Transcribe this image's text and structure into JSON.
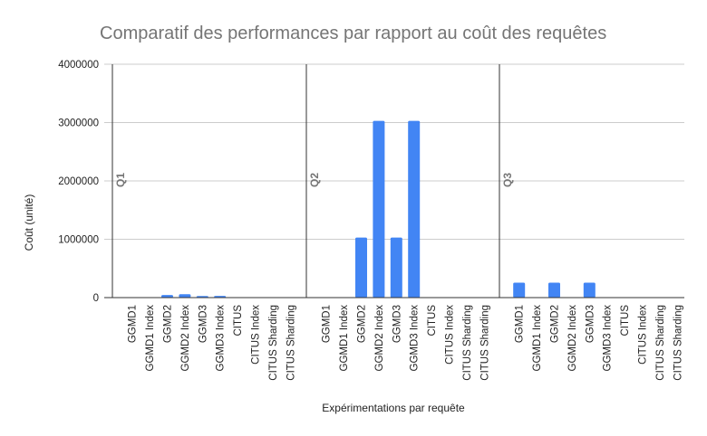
{
  "chart_data": {
    "type": "bar",
    "title": "Comparatif des performances par rapport au coût des requêtes",
    "xlabel": "Expérimentations par requête",
    "ylabel": "Coût (unité)",
    "ylim": [
      0,
      4000000
    ],
    "yticks": [
      "0",
      "1000000",
      "2000000",
      "3000000",
      "4000000"
    ],
    "grid": true,
    "legend": "none",
    "bar_color": "#4285f4",
    "groups": [
      {
        "label": "Q1",
        "categories": [
          "GGMD1",
          "GGMD1 Index",
          "GGMD2",
          "GGMD2 Index",
          "GGMD3",
          "GGMD3 Index",
          "CITUS",
          "CITUS Index",
          "CITUS Sharding",
          "CITUS Sharding"
        ],
        "values": [
          0,
          0,
          45000,
          58000,
          28000,
          30000,
          0,
          0,
          0,
          0
        ]
      },
      {
        "label": "Q2",
        "categories": [
          "GGMD1",
          "GGMD1 Index",
          "GGMD2",
          "GGMD2 Index",
          "GGMD3",
          "GGMD3 Index",
          "CITUS",
          "CITUS Index",
          "CITUS Sharding",
          "CITUS Sharding"
        ],
        "values": [
          0,
          0,
          1030000,
          3030000,
          1030000,
          3030000,
          0,
          0,
          0,
          0
        ]
      },
      {
        "label": "Q3",
        "categories": [
          "GGMD1",
          "GGMD1 Index",
          "GGMD2",
          "GGMD2 Index",
          "GGMD3",
          "GGMD3 Index",
          "CITUS",
          "CITUS Index",
          "CITUS Sharding",
          "CITUS Sharding"
        ],
        "values": [
          255000,
          0,
          255000,
          0,
          255000,
          0,
          0,
          0,
          0,
          0
        ]
      }
    ]
  }
}
